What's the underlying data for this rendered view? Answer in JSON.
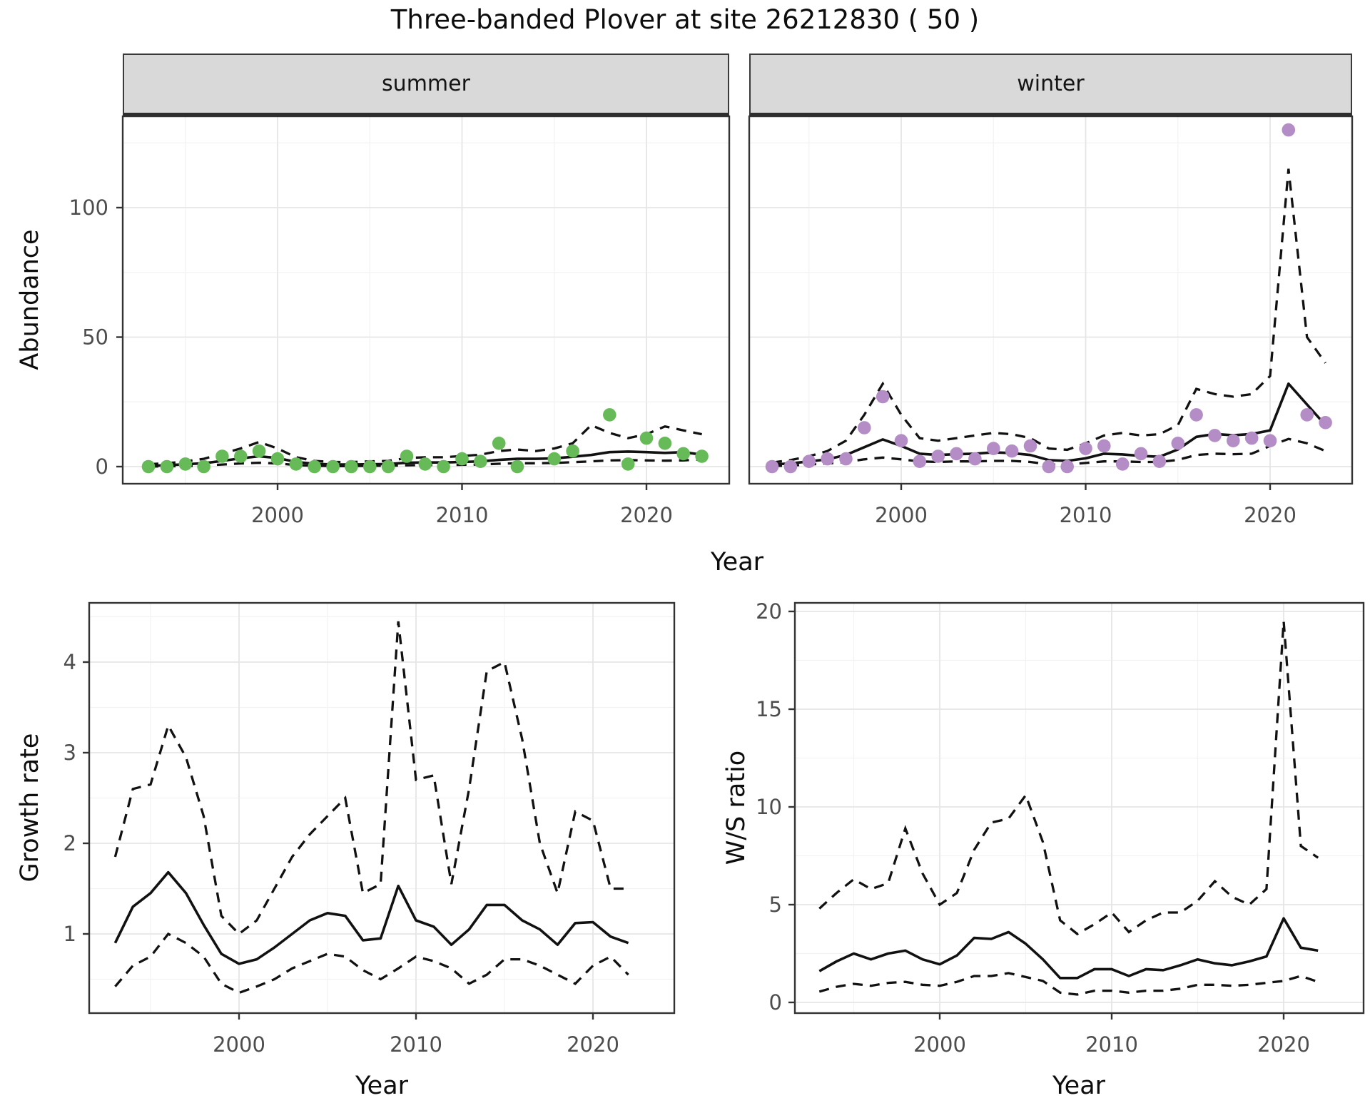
{
  "title": "Three-banded Plover at site 26212830 ( 50 )",
  "facets": {
    "summer_label": "summer",
    "winter_label": "winter"
  },
  "axes": {
    "top_y_title": "Abundance",
    "top_x_title": "Year",
    "bottom_left_y_title": "Growth rate",
    "bottom_left_x_title": "Year",
    "bottom_right_y_title": "W/S ratio",
    "bottom_right_x_title": "Year"
  },
  "colors": {
    "summer_point": "#67ba58",
    "winter_point": "#b48cc6",
    "line": "#111111",
    "panel_border": "#333333",
    "grid_major": "#e6e6e6",
    "grid_minor": "#f2f2f2",
    "axis_text": "#4d4d4d",
    "strip_bg": "#d9d9d9"
  },
  "chart_data": [
    {
      "id": "abundance_summer",
      "type": "scatter",
      "facet": "summer",
      "ylabel": "Abundance",
      "xlabel": "Year",
      "xlim": [
        1991.6,
        2024.4
      ],
      "ylim": [
        -7,
        135
      ],
      "x_ticks": [
        2000,
        2010,
        2020
      ],
      "x_minor": [
        1995,
        2005,
        2015,
        2025
      ],
      "y_ticks": [
        0,
        50,
        100
      ],
      "y_minor": [
        25,
        75,
        125
      ],
      "points": {
        "years": [
          1993,
          1994,
          1995,
          1996,
          1997,
          1998,
          1999,
          2000,
          2001,
          2002,
          2003,
          2004,
          2005,
          2006,
          2007,
          2008,
          2009,
          2010,
          2011,
          2012,
          2013,
          2015,
          2016,
          2018,
          2019,
          2020,
          2021,
          2022,
          2023
        ],
        "values": [
          0,
          0,
          1,
          0,
          4,
          4,
          6,
          3,
          1,
          0,
          0,
          0,
          0,
          0,
          4,
          1,
          0,
          3,
          2,
          9,
          0,
          3,
          6,
          20,
          1,
          11,
          9,
          5,
          4
        ]
      },
      "series": {
        "years": [
          1993,
          1994,
          1995,
          1996,
          1997,
          1998,
          1999,
          2000,
          2001,
          2002,
          2003,
          2004,
          2005,
          2006,
          2007,
          2008,
          2009,
          2010,
          2011,
          2012,
          2013,
          2014,
          2015,
          2016,
          2017,
          2018,
          2019,
          2020,
          2021,
          2022,
          2023
        ],
        "mean": [
          0.3,
          0.5,
          0.9,
          1.3,
          2.2,
          3.2,
          4.0,
          3.3,
          1.8,
          1.1,
          0.8,
          0.8,
          0.9,
          1.0,
          1.5,
          1.6,
          1.6,
          1.8,
          2.0,
          2.6,
          3.0,
          3.0,
          3.2,
          3.8,
          4.5,
          5.6,
          5.8,
          5.6,
          5.3,
          5.6,
          4.6
        ],
        "upper": [
          0.9,
          1.3,
          2.0,
          3.0,
          5.0,
          7.0,
          9.5,
          7.0,
          3.6,
          2.2,
          1.8,
          1.8,
          2.0,
          2.2,
          3.3,
          3.6,
          3.6,
          4.1,
          4.6,
          6.0,
          6.6,
          6.0,
          7.0,
          9.0,
          16.0,
          13.0,
          11.0,
          12.5,
          15.5,
          14.0,
          12.5
        ],
        "lower": [
          0.0,
          0.1,
          0.2,
          0.4,
          0.8,
          1.2,
          1.5,
          1.2,
          0.6,
          0.3,
          0.2,
          0.2,
          0.3,
          0.3,
          0.5,
          0.6,
          0.6,
          0.7,
          0.8,
          1.1,
          1.3,
          1.3,
          1.4,
          1.7,
          2.0,
          2.4,
          2.5,
          2.4,
          2.3,
          2.4,
          2.8
        ]
      }
    },
    {
      "id": "abundance_winter",
      "type": "scatter",
      "facet": "winter",
      "ylabel": "Abundance",
      "xlabel": "Year",
      "xlim": [
        1991.6,
        2024.4
      ],
      "ylim": [
        -7,
        135
      ],
      "x_ticks": [
        2000,
        2010,
        2020
      ],
      "x_minor": [
        1995,
        2005,
        2015,
        2025
      ],
      "y_ticks": [
        0,
        50,
        100
      ],
      "y_minor": [
        25,
        75,
        125
      ],
      "points": {
        "years": [
          1993,
          1994,
          1995,
          1996,
          1997,
          1998,
          1999,
          2000,
          2001,
          2002,
          2003,
          2004,
          2005,
          2006,
          2007,
          2008,
          2009,
          2010,
          2011,
          2012,
          2013,
          2014,
          2015,
          2016,
          2017,
          2018,
          2019,
          2020,
          2021,
          2022,
          2023
        ],
        "values": [
          0,
          0,
          2,
          3,
          3,
          15,
          27,
          10,
          2,
          4,
          5,
          3,
          7,
          6,
          8,
          0,
          0,
          7,
          8,
          1,
          5,
          2,
          9,
          20,
          12,
          10,
          11,
          10,
          130,
          20,
          17
        ]
      },
      "series": {
        "years": [
          1993,
          1994,
          1995,
          1996,
          1997,
          1998,
          1999,
          2000,
          2001,
          2002,
          2003,
          2004,
          2005,
          2006,
          2007,
          2008,
          2009,
          2010,
          2011,
          2012,
          2013,
          2014,
          2015,
          2016,
          2017,
          2018,
          2019,
          2020,
          2021,
          2022,
          2023
        ],
        "mean": [
          0.8,
          1.2,
          2.0,
          2.8,
          4.5,
          7.5,
          10.5,
          8.0,
          5.0,
          4.5,
          4.8,
          5.0,
          5.5,
          5.2,
          4.5,
          2.5,
          2.2,
          3.2,
          5.0,
          4.7,
          4.1,
          3.8,
          6.6,
          11.5,
          12.6,
          12.1,
          12.6,
          14.0,
          32.0,
          24.0,
          16.0
        ],
        "upper": [
          1.6,
          2.5,
          4.0,
          6.0,
          10.0,
          20.0,
          32.0,
          20.0,
          11.0,
          10.0,
          11.0,
          12.0,
          13.0,
          12.5,
          11.0,
          7.0,
          6.5,
          9.0,
          12.0,
          13.0,
          12.0,
          12.5,
          16.0,
          30.0,
          28.0,
          27.0,
          28.0,
          35.0,
          115.0,
          50.0,
          40.0
        ],
        "lower": [
          0.2,
          0.4,
          0.8,
          1.2,
          1.8,
          2.8,
          3.5,
          2.8,
          2.0,
          1.8,
          2.0,
          2.0,
          2.2,
          2.2,
          1.8,
          0.8,
          0.8,
          1.4,
          2.0,
          2.0,
          1.8,
          1.8,
          2.6,
          4.5,
          5.0,
          4.8,
          5.0,
          8.0,
          10.7,
          9.0,
          6.0
        ]
      }
    },
    {
      "id": "growth_rate",
      "type": "line",
      "ylabel": "Growth rate",
      "xlabel": "Year",
      "xlim": [
        1991.6,
        2024.6
      ],
      "ylim": [
        0.12,
        4.65
      ],
      "x_ticks": [
        2000,
        2010,
        2020
      ],
      "x_minor": [
        1995,
        2005,
        2015,
        2025
      ],
      "y_ticks": [
        1,
        2,
        3,
        4
      ],
      "y_minor": [
        0.5,
        1.5,
        2.5,
        3.5,
        4.5
      ],
      "series": {
        "years": [
          1993,
          1994,
          1995,
          1996,
          1997,
          1998,
          1999,
          2000,
          2001,
          2002,
          2003,
          2004,
          2005,
          2006,
          2007,
          2008,
          2009,
          2010,
          2011,
          2012,
          2013,
          2014,
          2015,
          2016,
          2017,
          2018,
          2019,
          2020,
          2021,
          2022
        ],
        "mean": [
          0.9,
          1.3,
          1.45,
          1.68,
          1.45,
          1.1,
          0.78,
          0.67,
          0.72,
          0.85,
          1.0,
          1.15,
          1.23,
          1.2,
          0.93,
          0.95,
          1.53,
          1.15,
          1.08,
          0.88,
          1.05,
          1.32,
          1.32,
          1.15,
          1.05,
          0.88,
          1.12,
          1.13,
          0.97,
          0.9
        ],
        "upper": [
          1.85,
          2.6,
          2.65,
          3.3,
          2.95,
          2.3,
          1.2,
          1.0,
          1.15,
          1.5,
          1.85,
          2.1,
          2.3,
          2.5,
          1.45,
          1.55,
          4.45,
          2.7,
          2.75,
          1.55,
          2.6,
          3.9,
          4.0,
          3.15,
          2.0,
          1.45,
          2.35,
          2.25,
          1.5,
          1.5
        ],
        "lower": [
          0.42,
          0.65,
          0.75,
          1.0,
          0.9,
          0.75,
          0.45,
          0.35,
          0.42,
          0.5,
          0.62,
          0.7,
          0.78,
          0.75,
          0.6,
          0.5,
          0.62,
          0.75,
          0.7,
          0.62,
          0.45,
          0.55,
          0.72,
          0.72,
          0.65,
          0.55,
          0.45,
          0.65,
          0.75,
          0.55
        ]
      }
    },
    {
      "id": "ws_ratio",
      "type": "line",
      "ylabel": "W/S ratio",
      "xlabel": "Year",
      "xlim": [
        1991.6,
        2024.6
      ],
      "ylim": [
        -0.55,
        20.45
      ],
      "x_ticks": [
        2000,
        2010,
        2020
      ],
      "x_minor": [
        1995,
        2005,
        2015,
        2025
      ],
      "y_ticks": [
        0,
        5,
        10,
        15,
        20
      ],
      "y_minor": [
        2.5,
        7.5,
        12.5,
        17.5
      ],
      "series": {
        "years": [
          1993,
          1994,
          1995,
          1996,
          1997,
          1998,
          1999,
          2000,
          2001,
          2002,
          2003,
          2004,
          2005,
          2006,
          2007,
          2008,
          2009,
          2010,
          2011,
          2012,
          2013,
          2014,
          2015,
          2016,
          2017,
          2018,
          2019,
          2020,
          2021,
          2022
        ],
        "mean": [
          1.6,
          2.1,
          2.5,
          2.2,
          2.5,
          2.65,
          2.2,
          1.95,
          2.4,
          3.3,
          3.25,
          3.6,
          3.0,
          2.2,
          1.25,
          1.25,
          1.7,
          1.7,
          1.35,
          1.7,
          1.65,
          1.9,
          2.2,
          2.0,
          1.9,
          2.1,
          2.35,
          4.3,
          2.8,
          2.65
        ],
        "upper": [
          4.8,
          5.6,
          6.3,
          5.8,
          6.1,
          8.9,
          6.6,
          5.0,
          5.6,
          7.8,
          9.2,
          9.4,
          10.6,
          8.2,
          4.2,
          3.5,
          4.0,
          4.6,
          3.6,
          4.2,
          4.6,
          4.6,
          5.2,
          6.2,
          5.4,
          5.0,
          5.8,
          19.5,
          8.0,
          7.4
        ],
        "lower": [
          0.55,
          0.8,
          0.95,
          0.85,
          1.0,
          1.05,
          0.9,
          0.85,
          1.05,
          1.35,
          1.35,
          1.5,
          1.3,
          1.1,
          0.5,
          0.4,
          0.6,
          0.6,
          0.5,
          0.6,
          0.6,
          0.7,
          0.9,
          0.9,
          0.85,
          0.9,
          1.0,
          1.1,
          1.35,
          1.05
        ]
      }
    }
  ]
}
